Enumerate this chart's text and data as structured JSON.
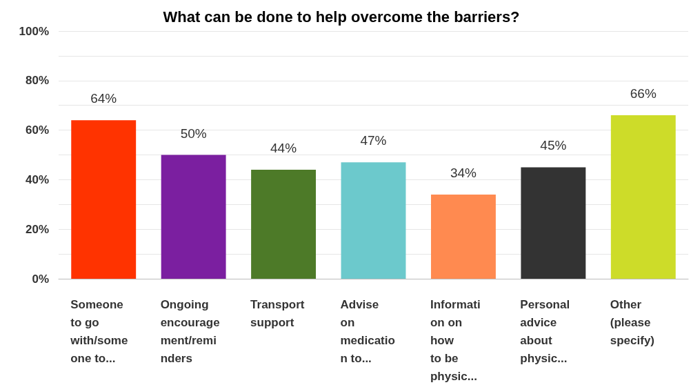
{
  "chart_data": {
    "type": "bar",
    "title": "What can be done to help overcome the barriers?",
    "categories": [
      "Someone\nto go\nwith/some\none to...",
      "Ongoing\nencourage\nment/remi\nnders",
      "Transport\nsupport",
      "Advise\non\nmedicatio\nn to...",
      "Informati\non on\nhow\nto be\nphysic...",
      "Personal\nadvice\nabout\nphysic...",
      "Other\n(please\nspecify)"
    ],
    "values": [
      64,
      50,
      44,
      47,
      34,
      45,
      66
    ],
    "value_labels": [
      "64%",
      "50%",
      "44%",
      "47%",
      "34%",
      "45%",
      "66%"
    ],
    "colors": [
      "#ff3300",
      "#7b1fa0",
      "#4d7a28",
      "#6cc9cc",
      "#ff8a50",
      "#333333",
      "#cddc29"
    ],
    "ylim": [
      0,
      100
    ],
    "yticks": [
      {
        "value": 0,
        "label": "0%"
      },
      {
        "value": 10,
        "label": null
      },
      {
        "value": 20,
        "label": "20%"
      },
      {
        "value": 30,
        "label": null
      },
      {
        "value": 40,
        "label": "40%"
      },
      {
        "value": 50,
        "label": null
      },
      {
        "value": 60,
        "label": "60%"
      },
      {
        "value": 70,
        "label": null
      },
      {
        "value": 80,
        "label": "80%"
      },
      {
        "value": 90,
        "label": null
      },
      {
        "value": 100,
        "label": "100%"
      }
    ],
    "grid": true
  }
}
